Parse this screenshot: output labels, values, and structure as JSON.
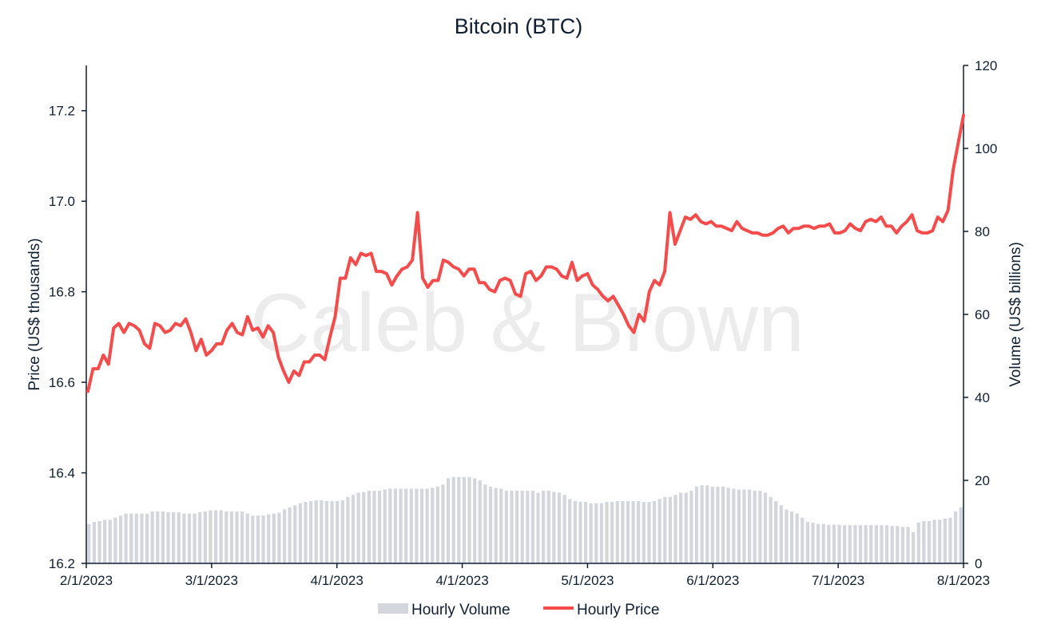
{
  "chart_data": {
    "type": "bar+line",
    "title": "Bitcoin (BTC)",
    "watermark": "Caleb & Brown",
    "xlabel": "",
    "ylabel_left": "Price (US$ thousands)",
    "ylabel_right": "Volume (US$ billions)",
    "ylim_left": [
      16.2,
      17.3
    ],
    "ylim_right": [
      0,
      120
    ],
    "yticks_left": [
      "16.2",
      "16.4",
      "16.6",
      "16.8",
      "17.0",
      "17.2"
    ],
    "yticks_right": [
      "0",
      "20",
      "40",
      "60",
      "80",
      "100",
      "120"
    ],
    "xticks": [
      "2/1/2023",
      "3/1/2023",
      "4/1/2023",
      "4/1/2023",
      "5/1/2023",
      "6/1/2023",
      "7/1/2023",
      "8/1/2023"
    ],
    "grid": false,
    "legend_position": "bottom-center",
    "colors": {
      "volume": "#d3d6dd",
      "price": "#f54b4b",
      "text": "#0f1f33"
    },
    "series": [
      {
        "name": "Hourly Volume",
        "type": "bar",
        "axis": "right",
        "values": [
          9.5,
          10.0,
          10.2,
          10.5,
          10.5,
          11.0,
          11.5,
          12.0,
          12.0,
          12.0,
          12.0,
          12.0,
          12.5,
          12.5,
          12.5,
          12.3,
          12.3,
          12.3,
          12.0,
          12.0,
          12.0,
          12.3,
          12.5,
          12.8,
          12.8,
          12.8,
          12.5,
          12.5,
          12.5,
          12.5,
          12.0,
          11.5,
          11.5,
          11.5,
          11.8,
          12.0,
          12.2,
          13.0,
          13.5,
          14.0,
          14.5,
          14.8,
          15.0,
          15.2,
          15.2,
          15.0,
          15.0,
          15.0,
          15.2,
          16.0,
          16.5,
          17.0,
          17.2,
          17.5,
          17.5,
          17.5,
          17.8,
          18.0,
          18.0,
          18.0,
          18.0,
          18.0,
          18.0,
          18.0,
          18.0,
          18.2,
          18.5,
          19.0,
          20.5,
          20.8,
          20.8,
          20.8,
          20.8,
          20.5,
          20.0,
          19.0,
          18.5,
          18.2,
          18.0,
          17.5,
          17.5,
          17.5,
          17.5,
          17.5,
          17.5,
          17.0,
          17.5,
          17.5,
          17.2,
          17.0,
          16.5,
          15.5,
          15.0,
          14.8,
          14.8,
          14.5,
          14.5,
          14.5,
          14.8,
          14.8,
          15.0,
          15.0,
          15.0,
          15.0,
          15.0,
          14.8,
          14.8,
          15.0,
          15.5,
          16.0,
          16.0,
          16.5,
          17.0,
          17.0,
          17.5,
          18.5,
          18.8,
          18.8,
          18.5,
          18.5,
          18.5,
          18.2,
          18.0,
          17.8,
          17.8,
          17.8,
          17.5,
          17.5,
          17.0,
          16.0,
          15.0,
          14.0,
          13.0,
          12.5,
          12.0,
          11.0,
          10.0,
          9.8,
          9.5,
          9.5,
          9.3,
          9.3,
          9.3,
          9.2,
          9.2,
          9.2,
          9.2,
          9.2,
          9.2,
          9.2,
          9.2,
          9.2,
          9.0,
          9.0,
          8.8,
          8.8,
          7.5,
          9.8,
          10.2,
          10.2,
          10.5,
          10.5,
          10.8,
          11.0,
          12.5,
          13.5
        ]
      },
      {
        "name": "Hourly Price",
        "type": "line",
        "axis": "left",
        "values": [
          16.58,
          16.63,
          16.63,
          16.66,
          16.64,
          16.72,
          16.73,
          16.71,
          16.73,
          16.725,
          16.715,
          16.685,
          16.675,
          16.73,
          16.725,
          16.71,
          16.715,
          16.73,
          16.725,
          16.74,
          16.71,
          16.67,
          16.695,
          16.66,
          16.67,
          16.685,
          16.685,
          16.715,
          16.73,
          16.71,
          16.705,
          16.745,
          16.715,
          16.72,
          16.7,
          16.725,
          16.71,
          16.655,
          16.625,
          16.6,
          16.625,
          16.615,
          16.645,
          16.645,
          16.66,
          16.66,
          16.65,
          16.7,
          16.745,
          16.83,
          16.83,
          16.875,
          16.86,
          16.885,
          16.88,
          16.885,
          16.845,
          16.845,
          16.84,
          16.815,
          16.835,
          16.85,
          16.855,
          16.87,
          16.975,
          16.83,
          16.81,
          16.825,
          16.825,
          16.87,
          16.865,
          16.855,
          16.85,
          16.835,
          16.85,
          16.85,
          16.82,
          16.82,
          16.805,
          16.8,
          16.825,
          16.83,
          16.825,
          16.795,
          16.79,
          16.84,
          16.845,
          16.825,
          16.835,
          16.855,
          16.855,
          16.85,
          16.835,
          16.83,
          16.865,
          16.825,
          16.835,
          16.84,
          16.815,
          16.805,
          16.79,
          16.78,
          16.79,
          16.77,
          16.75,
          16.725,
          16.71,
          16.75,
          16.735,
          16.8,
          16.825,
          16.815,
          16.845,
          16.975,
          16.905,
          16.935,
          16.965,
          16.96,
          16.97,
          16.955,
          16.95,
          16.955,
          16.945,
          16.945,
          16.94,
          16.935,
          16.955,
          16.94,
          16.935,
          16.93,
          16.93,
          16.925,
          16.925,
          16.93,
          16.94,
          16.945,
          16.93,
          16.94,
          16.94,
          16.945,
          16.945,
          16.94,
          16.945,
          16.945,
          16.95,
          16.93,
          16.93,
          16.935,
          16.95,
          16.94,
          16.935,
          16.955,
          16.96,
          16.955,
          16.965,
          16.945,
          16.945,
          16.93,
          16.945,
          16.955,
          16.97,
          16.935,
          16.93,
          16.93,
          16.935,
          16.965,
          16.955,
          16.98,
          17.07,
          17.13,
          17.19
        ]
      }
    ]
  },
  "legend": {
    "volume_label": "Hourly Volume",
    "price_label": "Hourly Price"
  }
}
